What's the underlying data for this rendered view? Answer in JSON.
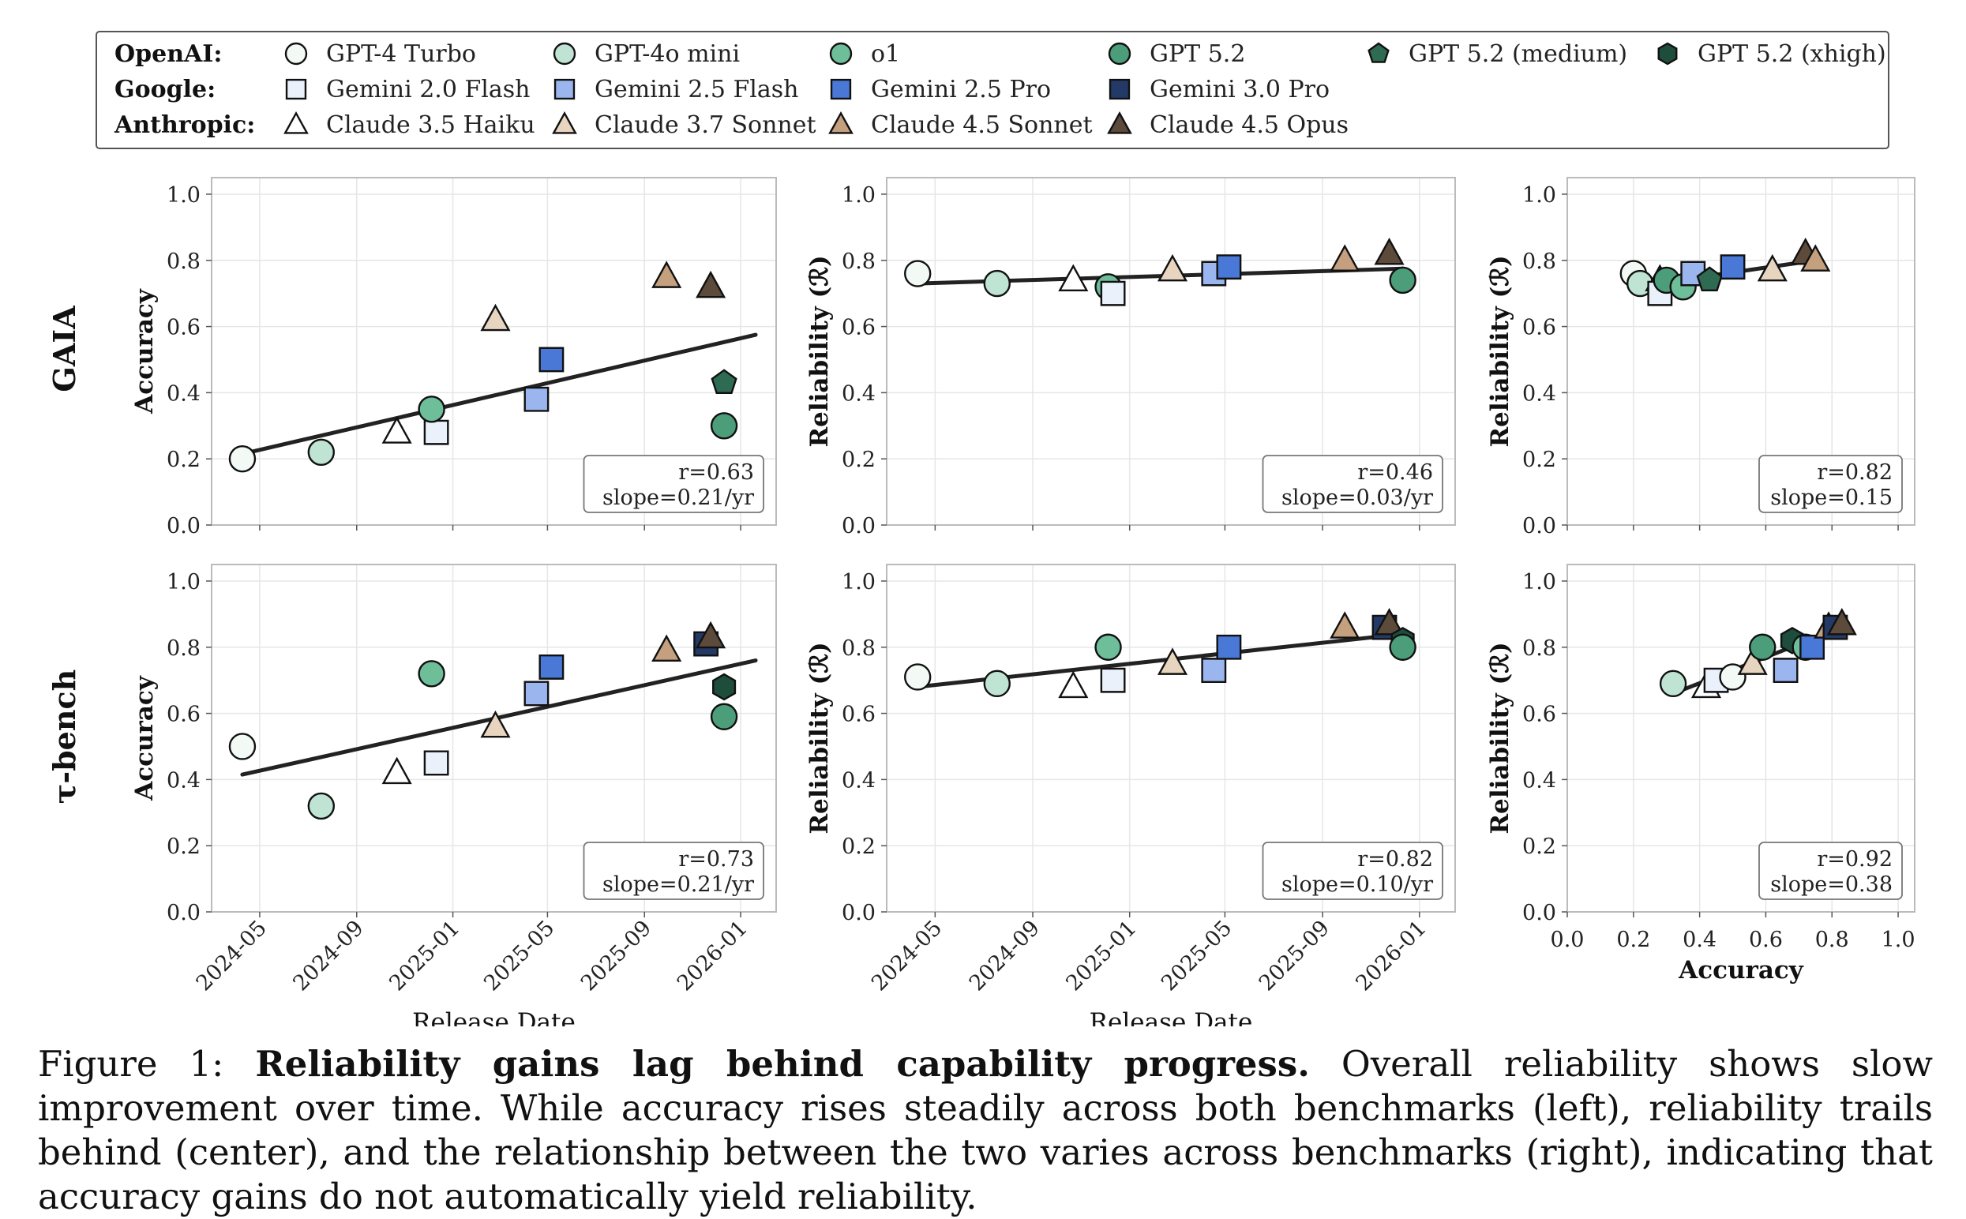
{
  "legend": {
    "groups": [
      {
        "label": "OpenAI:",
        "items": [
          {
            "name": "GPT-4 Turbo",
            "marker": "circle",
            "color": "#f3faf6"
          },
          {
            "name": "GPT-4o mini",
            "marker": "circle",
            "color": "#bfe4d3"
          },
          {
            "name": "o1",
            "marker": "circle",
            "color": "#6ebe9a"
          },
          {
            "name": "GPT 5.2",
            "marker": "circle",
            "color": "#4c9e7a"
          },
          {
            "name": "GPT 5.2 (medium)",
            "marker": "pentagon",
            "color": "#2f6b52"
          },
          {
            "name": "GPT 5.2 (xhigh)",
            "marker": "hexagon",
            "color": "#1f4d3c"
          }
        ]
      },
      {
        "label": "Google:",
        "items": [
          {
            "name": "Gemini 2.0 Flash",
            "marker": "square",
            "color": "#eaf1fb"
          },
          {
            "name": "Gemini 2.5 Flash",
            "marker": "square",
            "color": "#9bb6ee"
          },
          {
            "name": "Gemini 2.5 Pro",
            "marker": "square",
            "color": "#4a78d6"
          },
          {
            "name": "Gemini 3.0 Pro",
            "marker": "square",
            "color": "#243a66"
          }
        ]
      },
      {
        "label": "Anthropic:",
        "items": [
          {
            "name": "Claude 3.5 Haiku",
            "marker": "triangle",
            "color": "#ffffff"
          },
          {
            "name": "Claude 3.7 Sonnet",
            "marker": "triangle",
            "color": "#e8d5c0"
          },
          {
            "name": "Claude 4.5 Sonnet",
            "marker": "triangle",
            "color": "#c4a07e"
          },
          {
            "name": "Claude 4.5 Opus",
            "marker": "triangle",
            "color": "#5c4a3b"
          }
        ]
      }
    ]
  },
  "row_labels": [
    "GAIA",
    "τ-bench"
  ],
  "chart_data": [
    {
      "type": "scatter",
      "panel": "gaia-accuracy",
      "row": 0,
      "col": 0,
      "xlabel": "",
      "ylabel": "Accuracy",
      "x_kind": "date",
      "xlim": [
        "2024-03-01",
        "2026-02-15"
      ],
      "ylim": [
        0,
        1.05
      ],
      "xticks": [
        "2024-05-01",
        "2024-09-01",
        "2025-01-01",
        "2025-05-01",
        "2025-09-01",
        "2026-01-01"
      ],
      "xticklabels": [],
      "yticks": [
        0,
        0.2,
        0.4,
        0.6,
        0.8,
        1.0
      ],
      "yticklabels": [
        "0.0",
        "0.2",
        "0.4",
        "0.6",
        "0.8",
        "1.0"
      ],
      "annotation": [
        "r=0.63",
        "slope=0.21/yr"
      ],
      "fit_line": {
        "x": [
          "2024-04-09",
          "2026-01-20"
        ],
        "y": [
          0.215,
          0.575
        ]
      },
      "points": [
        {
          "model": "GPT-4 Turbo",
          "x": "2024-04-09",
          "y": 0.2
        },
        {
          "model": "GPT-4o mini",
          "x": "2024-07-18",
          "y": 0.22
        },
        {
          "model": "Claude 3.5 Haiku",
          "x": "2024-10-22",
          "y": 0.28
        },
        {
          "model": "Gemini 2.0 Flash",
          "x": "2024-12-11",
          "y": 0.28
        },
        {
          "model": "o1",
          "x": "2024-12-05",
          "y": 0.35
        },
        {
          "model": "Claude 3.7 Sonnet",
          "x": "2025-02-24",
          "y": 0.62
        },
        {
          "model": "Gemini 2.5 Flash",
          "x": "2025-04-17",
          "y": 0.38
        },
        {
          "model": "Gemini 2.5 Pro",
          "x": "2025-05-06",
          "y": 0.5
        },
        {
          "model": "Claude 4.5 Sonnet",
          "x": "2025-09-29",
          "y": 0.75
        },
        {
          "model": "Claude 4.5 Opus",
          "x": "2025-11-24",
          "y": 0.72
        },
        {
          "model": "GPT 5.2 (medium)",
          "x": "2025-12-11",
          "y": 0.43
        },
        {
          "model": "GPT 5.2",
          "x": "2025-12-11",
          "y": 0.3
        }
      ]
    },
    {
      "type": "scatter",
      "panel": "gaia-reliability-date",
      "row": 0,
      "col": 1,
      "xlabel": "",
      "ylabel": "Reliability (ℛ)",
      "x_kind": "date",
      "xlim": [
        "2024-03-01",
        "2026-02-15"
      ],
      "ylim": [
        0,
        1.05
      ],
      "xticks": [
        "2024-05-01",
        "2024-09-01",
        "2025-01-01",
        "2025-05-01",
        "2025-09-01",
        "2026-01-01"
      ],
      "xticklabels": [],
      "yticks": [
        0,
        0.2,
        0.4,
        0.6,
        0.8,
        1.0
      ],
      "yticklabels": [
        "0.0",
        "0.2",
        "0.4",
        "0.6",
        "0.8",
        "1.0"
      ],
      "annotation": [
        "r=0.46",
        "slope=0.03/yr"
      ],
      "fit_line": {
        "x": [
          "2024-04-09",
          "2025-12-11"
        ],
        "y": [
          0.73,
          0.775
        ]
      },
      "points": [
        {
          "model": "GPT-4 Turbo",
          "x": "2024-04-09",
          "y": 0.76
        },
        {
          "model": "GPT-4o mini",
          "x": "2024-07-18",
          "y": 0.73
        },
        {
          "model": "Claude 3.5 Haiku",
          "x": "2024-10-22",
          "y": 0.74
        },
        {
          "model": "o1",
          "x": "2024-12-05",
          "y": 0.72
        },
        {
          "model": "Gemini 2.0 Flash",
          "x": "2024-12-11",
          "y": 0.7
        },
        {
          "model": "Claude 3.7 Sonnet",
          "x": "2025-02-24",
          "y": 0.77
        },
        {
          "model": "Gemini 2.5 Flash",
          "x": "2025-04-17",
          "y": 0.76
        },
        {
          "model": "Gemini 2.5 Pro",
          "x": "2025-05-06",
          "y": 0.78
        },
        {
          "model": "Claude 4.5 Sonnet",
          "x": "2025-09-29",
          "y": 0.8
        },
        {
          "model": "Claude 4.5 Opus",
          "x": "2025-11-24",
          "y": 0.82
        },
        {
          "model": "GPT 5.2 (medium)",
          "x": "2025-12-11",
          "y": 0.74
        },
        {
          "model": "GPT 5.2",
          "x": "2025-12-11",
          "y": 0.74
        }
      ]
    },
    {
      "type": "scatter",
      "panel": "gaia-reliability-accuracy",
      "row": 0,
      "col": 2,
      "xlabel": "",
      "ylabel": "Reliability (ℛ)",
      "x_kind": "number",
      "xlim": [
        0,
        1.05
      ],
      "ylim": [
        0,
        1.05
      ],
      "xticks": [
        0,
        0.2,
        0.4,
        0.6,
        0.8,
        1.0
      ],
      "xticklabels": [],
      "yticks": [
        0,
        0.2,
        0.4,
        0.6,
        0.8,
        1.0
      ],
      "yticklabels": [
        "0.0",
        "0.2",
        "0.4",
        "0.6",
        "0.8",
        "1.0"
      ],
      "annotation": [
        "r=0.82",
        "slope=0.15"
      ],
      "fit_line": {
        "x": [
          0.2,
          0.75
        ],
        "y": [
          0.72,
          0.8
        ]
      },
      "points": [
        {
          "model": "GPT-4 Turbo",
          "x": 0.2,
          "y": 0.76
        },
        {
          "model": "GPT-4o mini",
          "x": 0.22,
          "y": 0.73
        },
        {
          "model": "Claude 3.5 Haiku",
          "x": 0.28,
          "y": 0.74
        },
        {
          "model": "Gemini 2.0 Flash",
          "x": 0.28,
          "y": 0.7
        },
        {
          "model": "GPT 5.2",
          "x": 0.3,
          "y": 0.74
        },
        {
          "model": "o1",
          "x": 0.35,
          "y": 0.72
        },
        {
          "model": "Gemini 2.5 Flash",
          "x": 0.38,
          "y": 0.76
        },
        {
          "model": "GPT 5.2 (medium)",
          "x": 0.43,
          "y": 0.74
        },
        {
          "model": "Gemini 2.5 Pro",
          "x": 0.5,
          "y": 0.78
        },
        {
          "model": "Claude 3.7 Sonnet",
          "x": 0.62,
          "y": 0.77
        },
        {
          "model": "Claude 4.5 Opus",
          "x": 0.72,
          "y": 0.82
        },
        {
          "model": "Claude 4.5 Sonnet",
          "x": 0.75,
          "y": 0.8
        }
      ]
    },
    {
      "type": "scatter",
      "panel": "tau-accuracy",
      "row": 1,
      "col": 0,
      "xlabel": "Release Date",
      "ylabel": "Accuracy",
      "x_kind": "date",
      "xlim": [
        "2024-03-01",
        "2026-02-15"
      ],
      "ylim": [
        0,
        1.05
      ],
      "xticks": [
        "2024-05-01",
        "2024-09-01",
        "2025-01-01",
        "2025-05-01",
        "2025-09-01",
        "2026-01-01"
      ],
      "xticklabels": [
        "2024-05",
        "2024-09",
        "2025-01",
        "2025-05",
        "2025-09",
        "2026-01"
      ],
      "yticks": [
        0,
        0.2,
        0.4,
        0.6,
        0.8,
        1.0
      ],
      "yticklabels": [
        "0.0",
        "0.2",
        "0.4",
        "0.6",
        "0.8",
        "1.0"
      ],
      "annotation": [
        "r=0.73",
        "slope=0.21/yr"
      ],
      "fit_line": {
        "x": [
          "2024-04-09",
          "2026-01-20"
        ],
        "y": [
          0.415,
          0.76
        ]
      },
      "points": [
        {
          "model": "GPT-4 Turbo",
          "x": "2024-04-09",
          "y": 0.5
        },
        {
          "model": "GPT-4o mini",
          "x": "2024-07-18",
          "y": 0.32
        },
        {
          "model": "Claude 3.5 Haiku",
          "x": "2024-10-22",
          "y": 0.42
        },
        {
          "model": "Gemini 2.0 Flash",
          "x": "2024-12-11",
          "y": 0.45
        },
        {
          "model": "o1",
          "x": "2024-12-05",
          "y": 0.72
        },
        {
          "model": "Claude 3.7 Sonnet",
          "x": "2025-02-24",
          "y": 0.56
        },
        {
          "model": "Gemini 2.5 Flash",
          "x": "2025-04-17",
          "y": 0.66
        },
        {
          "model": "Gemini 2.5 Pro",
          "x": "2025-05-06",
          "y": 0.74
        },
        {
          "model": "Claude 4.5 Sonnet",
          "x": "2025-09-29",
          "y": 0.79
        },
        {
          "model": "Gemini 3.0 Pro",
          "x": "2025-11-18",
          "y": 0.81
        },
        {
          "model": "Claude 4.5 Opus",
          "x": "2025-11-24",
          "y": 0.83
        },
        {
          "model": "GPT 5.2 (xhigh)",
          "x": "2025-12-11",
          "y": 0.68
        },
        {
          "model": "GPT 5.2",
          "x": "2025-12-11",
          "y": 0.59
        }
      ]
    },
    {
      "type": "scatter",
      "panel": "tau-reliability-date",
      "row": 1,
      "col": 1,
      "xlabel": "Release Date",
      "ylabel": "Reliability (ℛ)",
      "x_kind": "date",
      "xlim": [
        "2024-03-01",
        "2026-02-15"
      ],
      "ylim": [
        0,
        1.05
      ],
      "xticks": [
        "2024-05-01",
        "2024-09-01",
        "2025-01-01",
        "2025-05-01",
        "2025-09-01",
        "2026-01-01"
      ],
      "xticklabels": [
        "2024-05",
        "2024-09",
        "2025-01",
        "2025-05",
        "2025-09",
        "2026-01"
      ],
      "yticks": [
        0,
        0.2,
        0.4,
        0.6,
        0.8,
        1.0
      ],
      "yticklabels": [
        "0.0",
        "0.2",
        "0.4",
        "0.6",
        "0.8",
        "1.0"
      ],
      "annotation": [
        "r=0.82",
        "slope=0.10/yr"
      ],
      "fit_line": {
        "x": [
          "2024-04-09",
          "2025-12-11"
        ],
        "y": [
          0.68,
          0.84
        ]
      },
      "points": [
        {
          "model": "GPT-4 Turbo",
          "x": "2024-04-09",
          "y": 0.71
        },
        {
          "model": "GPT-4o mini",
          "x": "2024-07-18",
          "y": 0.69
        },
        {
          "model": "Claude 3.5 Haiku",
          "x": "2024-10-22",
          "y": 0.68
        },
        {
          "model": "o1",
          "x": "2024-12-05",
          "y": 0.8
        },
        {
          "model": "Gemini 2.0 Flash",
          "x": "2024-12-11",
          "y": 0.7
        },
        {
          "model": "Claude 3.7 Sonnet",
          "x": "2025-02-24",
          "y": 0.75
        },
        {
          "model": "Gemini 2.5 Flash",
          "x": "2025-04-17",
          "y": 0.73
        },
        {
          "model": "Gemini 2.5 Pro",
          "x": "2025-05-06",
          "y": 0.8
        },
        {
          "model": "Claude 4.5 Sonnet",
          "x": "2025-09-29",
          "y": 0.86
        },
        {
          "model": "Gemini 3.0 Pro",
          "x": "2025-11-18",
          "y": 0.86
        },
        {
          "model": "Claude 4.5 Opus",
          "x": "2025-11-24",
          "y": 0.87
        },
        {
          "model": "GPT 5.2 (xhigh)",
          "x": "2025-12-11",
          "y": 0.82
        },
        {
          "model": "GPT 5.2",
          "x": "2025-12-11",
          "y": 0.8
        }
      ]
    },
    {
      "type": "scatter",
      "panel": "tau-reliability-accuracy",
      "row": 1,
      "col": 2,
      "xlabel": "Accuracy",
      "ylabel": "Reliability (ℛ)",
      "x_kind": "number",
      "xlim": [
        0,
        1.05
      ],
      "ylim": [
        0,
        1.05
      ],
      "xticks": [
        0,
        0.2,
        0.4,
        0.6,
        0.8,
        1.0
      ],
      "xticklabels": [
        "0.0",
        "0.2",
        "0.4",
        "0.6",
        "0.8",
        "1.0"
      ],
      "yticks": [
        0,
        0.2,
        0.4,
        0.6,
        0.8,
        1.0
      ],
      "yticklabels": [
        "0.0",
        "0.2",
        "0.4",
        "0.6",
        "0.8",
        "1.0"
      ],
      "annotation": [
        "r=0.92",
        "slope=0.38"
      ],
      "fit_line": {
        "x": [
          0.32,
          0.83
        ],
        "y": [
          0.66,
          0.86
        ]
      },
      "points": [
        {
          "model": "GPT-4o mini",
          "x": 0.32,
          "y": 0.69
        },
        {
          "model": "Claude 3.5 Haiku",
          "x": 0.42,
          "y": 0.68
        },
        {
          "model": "Gemini 2.0 Flash",
          "x": 0.45,
          "y": 0.7
        },
        {
          "model": "GPT-4 Turbo",
          "x": 0.5,
          "y": 0.71
        },
        {
          "model": "Claude 3.7 Sonnet",
          "x": 0.56,
          "y": 0.75
        },
        {
          "model": "GPT 5.2",
          "x": 0.59,
          "y": 0.8
        },
        {
          "model": "Gemini 2.5 Flash",
          "x": 0.66,
          "y": 0.73
        },
        {
          "model": "GPT 5.2 (xhigh)",
          "x": 0.68,
          "y": 0.82
        },
        {
          "model": "o1",
          "x": 0.72,
          "y": 0.8
        },
        {
          "model": "Gemini 2.5 Pro",
          "x": 0.74,
          "y": 0.8
        },
        {
          "model": "Claude 4.5 Sonnet",
          "x": 0.79,
          "y": 0.86
        },
        {
          "model": "Gemini 3.0 Pro",
          "x": 0.81,
          "y": 0.86
        },
        {
          "model": "Claude 4.5 Opus",
          "x": 0.83,
          "y": 0.87
        }
      ]
    }
  ],
  "caption": {
    "prefix": "Figure 1: ",
    "title": "Reliability gains lag behind capability progress.",
    "body": " Overall reliability shows slow improvement over time. While accuracy rises steadily across both benchmarks (left), reliability trails behind (center), and the relationship between the two varies across benchmarks (right), indicating that accuracy gains do not automatically yield reliability."
  }
}
